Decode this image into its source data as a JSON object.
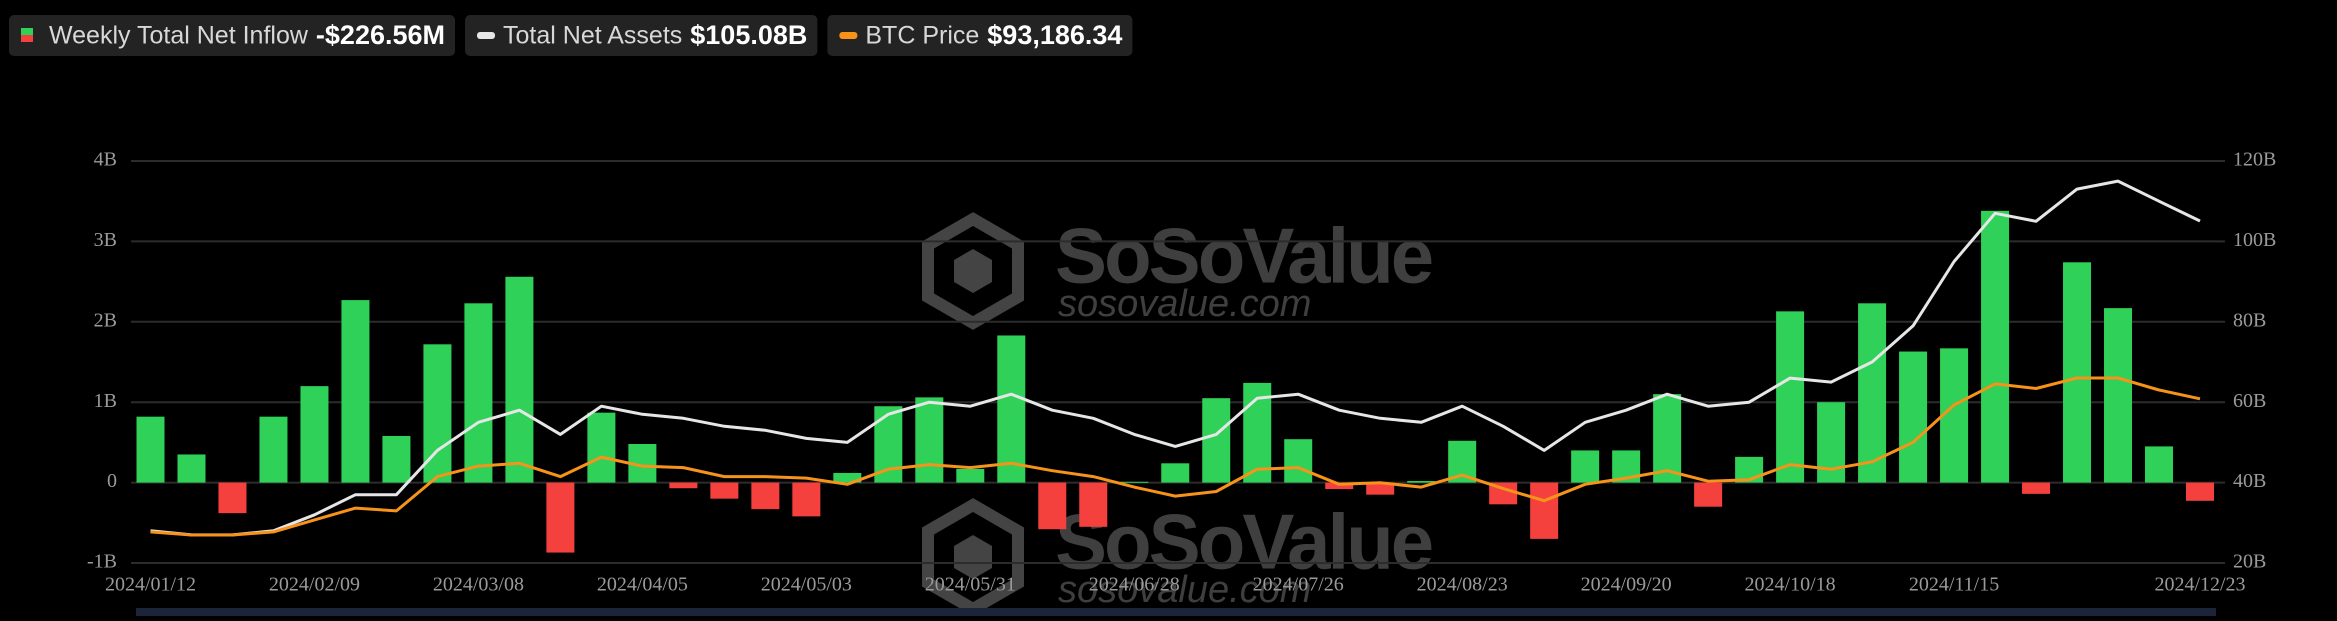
{
  "chart_data": {
    "type": "bar_line",
    "categories": [
      "2024/01/12",
      null,
      null,
      null,
      "2024/02/09",
      null,
      null,
      null,
      "2024/03/08",
      null,
      null,
      null,
      "2024/04/05",
      null,
      null,
      null,
      "2024/05/03",
      null,
      null,
      null,
      "2024/05/31",
      null,
      null,
      null,
      "2024/06/28",
      null,
      null,
      null,
      "2024/07/26",
      null,
      null,
      null,
      "2024/08/23",
      null,
      null,
      null,
      "2024/09/20",
      null,
      null,
      null,
      "2024/10/18",
      null,
      null,
      null,
      "2024/11/15",
      null,
      null,
      null,
      null,
      null,
      "2024/12/23"
    ],
    "series": [
      {
        "name": "Weekly Total Net Inflow",
        "value_label": "-$226.56M",
        "color": "#2fd159",
        "negative_color": "#f4413e",
        "values": [
          0.82,
          0.35,
          -0.38,
          0.82,
          1.2,
          2.27,
          0.58,
          1.72,
          2.23,
          2.56,
          -0.87,
          0.87,
          0.48,
          -0.07,
          -0.2,
          -0.33,
          -0.42,
          0.12,
          0.95,
          1.06,
          0.17,
          1.83,
          -0.58,
          -0.55,
          0.01,
          0.24,
          1.05,
          1.24,
          0.54,
          -0.08,
          -0.15,
          0.02,
          0.52,
          -0.27,
          -0.7,
          0.4,
          0.4,
          1.1,
          -0.3,
          0.32,
          2.13,
          1.0,
          2.23,
          1.63,
          1.67,
          3.38,
          -0.14,
          2.74,
          2.17,
          0.45,
          -0.22656
        ]
      },
      {
        "name": "Total Net Assets",
        "value_label": "$105.08B",
        "color": "#e6e6e6",
        "axis": "y2",
        "values": [
          28,
          27,
          27,
          28,
          32,
          37,
          37,
          48,
          55,
          58,
          52,
          59,
          57,
          56,
          54,
          53,
          51,
          50,
          57,
          60,
          59,
          62,
          58,
          56,
          52,
          49,
          52,
          61,
          62,
          58,
          56,
          55,
          59,
          54,
          48,
          55,
          58,
          62,
          59,
          60,
          66,
          65,
          70,
          79,
          95,
          107,
          105,
          113,
          115,
          110,
          105.08
        ]
      },
      {
        "name": "BTC Price",
        "value_label": "$93,186.34",
        "color": "#f7931a",
        "values": [
          41200,
          40000,
          40000,
          41200,
          45900,
          50500,
          49400,
          62800,
          66900,
          68000,
          62800,
          70400,
          66900,
          66300,
          62800,
          62800,
          62200,
          59800,
          65700,
          67500,
          66300,
          68000,
          65100,
          62800,
          58700,
          55200,
          57000,
          65700,
          66300,
          59800,
          60400,
          58700,
          63400,
          58100,
          53400,
          59800,
          62200,
          65100,
          61000,
          61600,
          67500,
          65700,
          68600,
          76200,
          90800,
          99000,
          97200,
          101300,
          101300,
          96600,
          93186.34
        ]
      }
    ],
    "ylim": [
      -1,
      4
    ],
    "yticks": [
      {
        "value": -1,
        "label": "-1B"
      },
      0,
      {
        "value": 1,
        "label": "1B"
      },
      {
        "value": 2,
        "label": "2B"
      },
      {
        "value": 3,
        "label": "3B"
      },
      {
        "value": 4,
        "label": "4B"
      }
    ],
    "y2lim": [
      20,
      120
    ],
    "y2ticks": [
      {
        "value": 20,
        "label": "20B"
      },
      {
        "value": 40,
        "label": "40B"
      },
      {
        "value": 60,
        "label": "60B"
      },
      {
        "value": 80,
        "label": "80B"
      },
      {
        "value": 100,
        "label": "100B"
      },
      {
        "value": 120,
        "label": "120B"
      }
    ],
    "grid": true,
    "watermark": {
      "brand": "SoSoValue",
      "site": "sosovalue.com"
    }
  }
}
